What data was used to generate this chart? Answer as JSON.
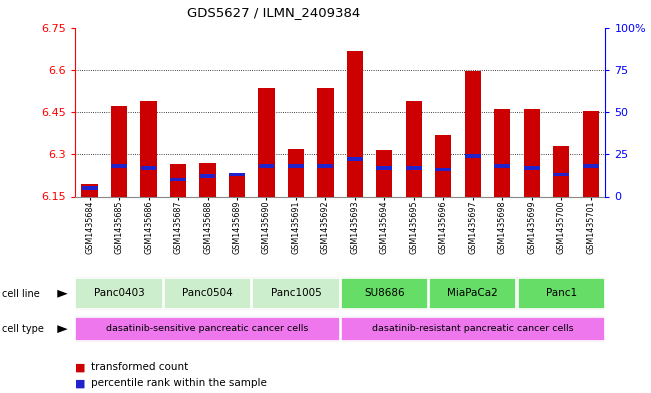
{
  "title": "GDS5627 / ILMN_2409384",
  "samples": [
    "GSM1435684",
    "GSM1435685",
    "GSM1435686",
    "GSM1435687",
    "GSM1435688",
    "GSM1435689",
    "GSM1435690",
    "GSM1435691",
    "GSM1435692",
    "GSM1435693",
    "GSM1435694",
    "GSM1435695",
    "GSM1435696",
    "GSM1435697",
    "GSM1435698",
    "GSM1435699",
    "GSM1435700",
    "GSM1435701"
  ],
  "transformed_counts": [
    6.195,
    6.47,
    6.49,
    6.265,
    6.27,
    6.235,
    6.535,
    6.32,
    6.535,
    6.665,
    6.315,
    6.49,
    6.37,
    6.595,
    6.46,
    6.46,
    6.33,
    6.455
  ],
  "percentile_ranks": [
    5,
    18,
    17,
    10,
    12,
    13,
    18,
    18,
    18,
    22,
    17,
    17,
    16,
    24,
    18,
    17,
    13,
    18
  ],
  "y_min": 6.15,
  "y_max": 6.75,
  "y_ticks": [
    6.15,
    6.3,
    6.45,
    6.6,
    6.75
  ],
  "right_y_ticks": [
    0,
    25,
    50,
    75,
    100
  ],
  "right_y_labels": [
    "0",
    "25",
    "50",
    "75",
    "100%"
  ],
  "bar_color": "#cc0000",
  "blue_color": "#2222cc",
  "cell_lines": [
    {
      "label": "Panc0403",
      "start": 0,
      "end": 2
    },
    {
      "label": "Panc0504",
      "start": 3,
      "end": 5
    },
    {
      "label": "Panc1005",
      "start": 6,
      "end": 8
    },
    {
      "label": "SU8686",
      "start": 9,
      "end": 11
    },
    {
      "label": "MiaPaCa2",
      "start": 12,
      "end": 14
    },
    {
      "label": "Panc1",
      "start": 15,
      "end": 17
    }
  ],
  "cell_line_light_color": "#cceecc",
  "cell_line_dark_color": "#66dd66",
  "cell_types": [
    {
      "label": "dasatinib-sensitive pancreatic cancer cells",
      "start": 0,
      "end": 8
    },
    {
      "label": "dasatinib-resistant pancreatic cancer cells",
      "start": 9,
      "end": 17
    }
  ],
  "cell_type_color": "#ee77ee",
  "background_color": "#ffffff",
  "bar_width": 0.55,
  "grid_yticks": [
    6.3,
    6.45,
    6.6
  ]
}
